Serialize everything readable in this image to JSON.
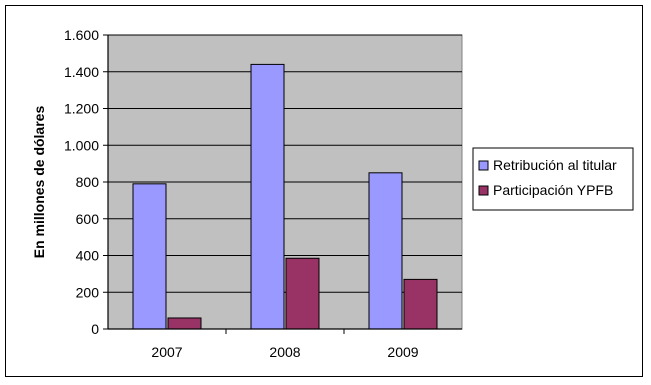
{
  "chart_data": {
    "type": "bar",
    "title": "",
    "xlabel": "",
    "ylabel": "En millones de dólares",
    "ylim": [
      0,
      1600
    ],
    "yticks": [
      0,
      200,
      400,
      600,
      800,
      1000,
      1200,
      1400,
      1600
    ],
    "ytick_labels": [
      "0",
      "200",
      "400",
      "600",
      "800",
      "1.000",
      "1.200",
      "1.400",
      "1.600"
    ],
    "categories": [
      "2007",
      "2008",
      "2009"
    ],
    "series": [
      {
        "name": "Retribución al titular",
        "values": [
          790,
          1440,
          850
        ],
        "color": "#9999ff"
      },
      {
        "name": "Participación YPFB",
        "values": [
          60,
          385,
          270
        ],
        "color": "#993366"
      }
    ],
    "grid": true,
    "plot_background": "#c0c0c0",
    "legend_position": "right"
  }
}
